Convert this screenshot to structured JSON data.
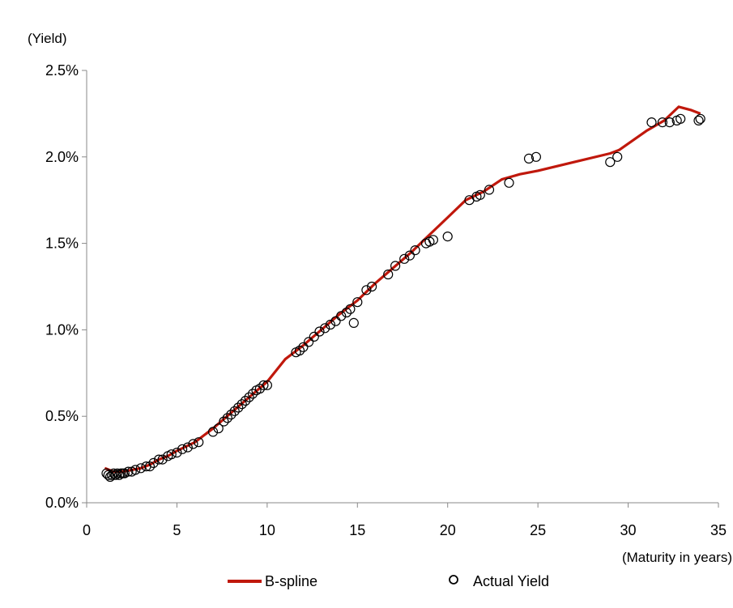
{
  "chart_data": {
    "type": "line",
    "title": "",
    "ylabel": "(Yield)",
    "xlabel": "(Maturity in years)",
    "xlim": [
      0,
      35
    ],
    "ylim": [
      0,
      0.025
    ],
    "x_ticks": [
      0,
      5,
      10,
      15,
      20,
      25,
      30,
      35
    ],
    "x_tick_labels": [
      "0",
      "5",
      "10",
      "15",
      "20",
      "25",
      "30",
      "35"
    ],
    "y_ticks": [
      0,
      0.005,
      0.01,
      0.015,
      0.02,
      0.025
    ],
    "y_tick_labels": [
      "0.0%",
      "0.5%",
      "1.0%",
      "1.5%",
      "2.0%",
      "2.5%"
    ],
    "grid": false,
    "legend_position": "bottom",
    "series": [
      {
        "name": "B-spline",
        "kind": "line",
        "color": "#c0180c",
        "points": [
          [
            1.0,
            0.002
          ],
          [
            1.5,
            0.0018
          ],
          [
            2.0,
            0.0018
          ],
          [
            2.5,
            0.0019
          ],
          [
            3.0,
            0.002
          ],
          [
            3.5,
            0.0022
          ],
          [
            4.0,
            0.0025
          ],
          [
            4.5,
            0.0027
          ],
          [
            5.0,
            0.003
          ],
          [
            6.0,
            0.0035
          ],
          [
            7.0,
            0.0043
          ],
          [
            8.0,
            0.0052
          ],
          [
            9.0,
            0.0061
          ],
          [
            10.0,
            0.007
          ],
          [
            11.0,
            0.0083
          ],
          [
            12.0,
            0.0091
          ],
          [
            13.0,
            0.01
          ],
          [
            14.0,
            0.0109
          ],
          [
            15.0,
            0.0117
          ],
          [
            16.0,
            0.0127
          ],
          [
            17.0,
            0.0136
          ],
          [
            18.0,
            0.0145
          ],
          [
            19.0,
            0.0155
          ],
          [
            20.0,
            0.0165
          ],
          [
            21.0,
            0.0175
          ],
          [
            22.0,
            0.018
          ],
          [
            23.0,
            0.0187
          ],
          [
            24.0,
            0.019
          ],
          [
            25.0,
            0.0192
          ],
          [
            27.0,
            0.0197
          ],
          [
            29.0,
            0.0202
          ],
          [
            29.5,
            0.0204
          ],
          [
            31.0,
            0.0215
          ],
          [
            32.0,
            0.0221
          ],
          [
            32.8,
            0.0229
          ],
          [
            33.5,
            0.0227
          ],
          [
            34.0,
            0.0225
          ]
        ]
      },
      {
        "name": "Actual Yield",
        "kind": "scatter",
        "marker": "open-circle",
        "color": "#000000",
        "points": [
          [
            1.1,
            0.0017
          ],
          [
            1.2,
            0.0016
          ],
          [
            1.3,
            0.0015
          ],
          [
            1.4,
            0.0016
          ],
          [
            1.5,
            0.0017
          ],
          [
            1.6,
            0.0016
          ],
          [
            1.7,
            0.0017
          ],
          [
            1.8,
            0.0016
          ],
          [
            1.9,
            0.0017
          ],
          [
            2.0,
            0.0017
          ],
          [
            2.1,
            0.0017
          ],
          [
            2.3,
            0.0018
          ],
          [
            2.5,
            0.0018
          ],
          [
            2.7,
            0.0019
          ],
          [
            3.0,
            0.002
          ],
          [
            3.3,
            0.0021
          ],
          [
            3.5,
            0.0021
          ],
          [
            3.7,
            0.0023
          ],
          [
            4.0,
            0.0025
          ],
          [
            4.2,
            0.0025
          ],
          [
            4.5,
            0.0027
          ],
          [
            4.7,
            0.0028
          ],
          [
            5.0,
            0.0029
          ],
          [
            5.3,
            0.0031
          ],
          [
            5.6,
            0.0032
          ],
          [
            5.9,
            0.0034
          ],
          [
            6.2,
            0.0035
          ],
          [
            7.0,
            0.0041
          ],
          [
            7.3,
            0.0043
          ],
          [
            7.6,
            0.0047
          ],
          [
            7.8,
            0.0049
          ],
          [
            8.0,
            0.0051
          ],
          [
            8.2,
            0.0053
          ],
          [
            8.4,
            0.0055
          ],
          [
            8.6,
            0.0057
          ],
          [
            8.8,
            0.0059
          ],
          [
            9.0,
            0.0061
          ],
          [
            9.2,
            0.0063
          ],
          [
            9.4,
            0.0065
          ],
          [
            9.6,
            0.0066
          ],
          [
            9.8,
            0.0068
          ],
          [
            10.0,
            0.0068
          ],
          [
            11.6,
            0.0087
          ],
          [
            11.8,
            0.0088
          ],
          [
            12.0,
            0.009
          ],
          [
            12.3,
            0.0093
          ],
          [
            12.6,
            0.0096
          ],
          [
            12.9,
            0.0099
          ],
          [
            13.2,
            0.0101
          ],
          [
            13.5,
            0.0103
          ],
          [
            13.8,
            0.0105
          ],
          [
            14.1,
            0.0108
          ],
          [
            14.4,
            0.011
          ],
          [
            14.6,
            0.0112
          ],
          [
            14.8,
            0.0104
          ],
          [
            15.0,
            0.0116
          ],
          [
            15.5,
            0.0123
          ],
          [
            15.8,
            0.0125
          ],
          [
            16.7,
            0.0132
          ],
          [
            17.1,
            0.0137
          ],
          [
            17.6,
            0.0141
          ],
          [
            17.9,
            0.0143
          ],
          [
            18.2,
            0.0146
          ],
          [
            18.8,
            0.015
          ],
          [
            19.0,
            0.0151
          ],
          [
            19.2,
            0.0152
          ],
          [
            20.0,
            0.0154
          ],
          [
            21.2,
            0.0175
          ],
          [
            21.6,
            0.0177
          ],
          [
            21.8,
            0.0178
          ],
          [
            22.3,
            0.0181
          ],
          [
            23.4,
            0.0185
          ],
          [
            24.5,
            0.0199
          ],
          [
            24.9,
            0.02
          ],
          [
            29.0,
            0.0197
          ],
          [
            29.4,
            0.02
          ],
          [
            31.3,
            0.022
          ],
          [
            31.9,
            0.022
          ],
          [
            32.3,
            0.022
          ],
          [
            32.7,
            0.0221
          ],
          [
            32.9,
            0.0222
          ],
          [
            33.9,
            0.0221
          ],
          [
            34.0,
            0.0222
          ]
        ]
      }
    ]
  }
}
